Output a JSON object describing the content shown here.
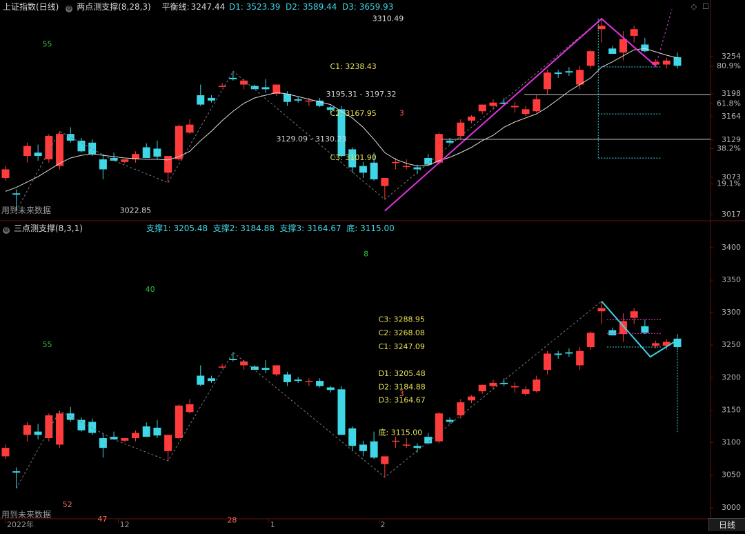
{
  "top": {
    "title": "上证指数(日线)",
    "indicator": "两点测支撑(8,28,3)",
    "balance_label": "平衡线:",
    "balance_value": "3247.44",
    "d_values": "D1: 3523.39  D2: 3589.44  D3: 3659.93",
    "future_label": "用到未来数据",
    "price_axis": [
      {
        "v": 3254,
        "t": "3254"
      },
      {
        "v": 3239.5,
        "t": "80.9%"
      },
      {
        "v": 3198,
        "t": "3198"
      },
      {
        "v": 3183,
        "t": "61.8%"
      },
      {
        "v": 3164,
        "t": "3164"
      },
      {
        "v": 3129,
        "t": "3129"
      },
      {
        "v": 3116,
        "t": "38.2%"
      },
      {
        "v": 3073,
        "t": "3073"
      },
      {
        "v": 3063,
        "t": "19.1%"
      },
      {
        "v": 3017,
        "t": "3017"
      }
    ],
    "annotations": [
      {
        "x": 17,
        "y": 3022.85,
        "t": "3022.85",
        "color": "#d8d8d8",
        "anchor": "start"
      },
      {
        "x": 54.6,
        "y": 3310.49,
        "t": "3310.49",
        "color": "#d8d8d8",
        "anchor": "start"
      },
      {
        "x": 48.3,
        "y": 3238.43,
        "t": "C1: 3238.43",
        "color": "#e8e05a",
        "anchor": "start"
      },
      {
        "x": 47.7,
        "y": 3197,
        "t": "3195.31 - 3197.32",
        "color": "#d8d8d8",
        "anchor": "start"
      },
      {
        "x": 48.3,
        "y": 3167.95,
        "t": "C2: 3167.95",
        "color": "#e8e05a",
        "anchor": "start"
      },
      {
        "x": 40.3,
        "y": 3130,
        "t": "3129.09 - 3130.23",
        "color": "#d8d8d8",
        "anchor": "start"
      },
      {
        "x": 48.3,
        "y": 3101.9,
        "t": "C3: 3101.90",
        "color": "#e8e05a",
        "anchor": "start"
      },
      {
        "x": 58.6,
        "y": 3168.5,
        "t": "3",
        "color": "#ff5a5a",
        "anchor": "start"
      },
      {
        "x": 5.5,
        "y": 3272,
        "t": "55",
        "color": "#30c040",
        "anchor": "start"
      }
    ]
  },
  "bottom": {
    "indicator": "三点测支撑(8,3,1)",
    "support_text": "支撑1: 3205.48  支撑2: 3184.88  支撑3: 3164.67  底: 3115.00",
    "future_label": "用到未来数据",
    "price_axis": [
      {
        "v": 3400,
        "t": "3400"
      },
      {
        "v": 3350,
        "t": "3350"
      },
      {
        "v": 3300,
        "t": "3300"
      },
      {
        "v": 3250,
        "t": "3250"
      },
      {
        "v": 3200,
        "t": "3200"
      },
      {
        "v": 3150,
        "t": "3150"
      },
      {
        "v": 3100,
        "t": "3100"
      },
      {
        "v": 3050,
        "t": "3050"
      },
      {
        "v": 3000,
        "t": "3000"
      }
    ],
    "annotations": [
      {
        "x": 55.5,
        "y": 3288.95,
        "t": "C3: 3288.95",
        "color": "#e8e05a",
        "anchor": "start"
      },
      {
        "x": 55.5,
        "y": 3268.08,
        "t": "C2: 3268.08",
        "color": "#e8e05a",
        "anchor": "start"
      },
      {
        "x": 55.5,
        "y": 3247.09,
        "t": "C1: 3247.09",
        "color": "#e8e05a",
        "anchor": "start"
      },
      {
        "x": 55.5,
        "y": 3205.48,
        "t": "D1: 3205.48",
        "color": "#e8e05a",
        "anchor": "start"
      },
      {
        "x": 55.5,
        "y": 3184.88,
        "t": "D2: 3184.88",
        "color": "#e8e05a",
        "anchor": "start"
      },
      {
        "x": 55.5,
        "y": 3164.67,
        "t": "D3: 3164.67",
        "color": "#e8e05a",
        "anchor": "start"
      },
      {
        "x": 55.5,
        "y": 3115.0,
        "t": "底: 3115.00",
        "color": "#e8e05a",
        "anchor": "start"
      },
      {
        "x": 5.5,
        "y": 3250,
        "t": "55",
        "color": "#30c040",
        "anchor": "start"
      },
      {
        "x": 20.8,
        "y": 3335,
        "t": "40",
        "color": "#30c040",
        "anchor": "start"
      },
      {
        "x": 53.3,
        "y": 3390,
        "t": "8",
        "color": "#30c040",
        "anchor": "start"
      },
      {
        "x": 8.5,
        "y": 3004,
        "t": "52",
        "color": "#ff6a5a",
        "anchor": "start"
      },
      {
        "x": 13.7,
        "y": 2982,
        "t": "47",
        "color": "#ff6a5a",
        "anchor": "start"
      },
      {
        "x": 33.0,
        "y": 2980,
        "t": "28",
        "color": "#ff6a5a",
        "anchor": "start"
      },
      {
        "x": 58.6,
        "y": 3175,
        "t": "3",
        "color": "#ff6a5a",
        "anchor": "start"
      }
    ]
  },
  "time_axis": [
    {
      "x": 0,
      "t": "2022年"
    },
    {
      "x": 16.8,
      "t": "12"
    },
    {
      "x": 39.2,
      "t": "1"
    },
    {
      "x": 55.6,
      "t": "2"
    }
  ],
  "tab_label": "日线",
  "chart_data": {
    "type": "candlestick",
    "x_unit": "trading day index",
    "ohlc": [
      [
        3072,
        3090,
        3068,
        3085
      ],
      [
        3049,
        3055,
        3022.85,
        3047
      ],
      [
        3105,
        3125,
        3095,
        3120
      ],
      [
        3110,
        3122,
        3098,
        3105
      ],
      [
        3100,
        3138,
        3095,
        3135
      ],
      [
        3090,
        3142,
        3085,
        3138
      ],
      [
        3138,
        3148,
        3125,
        3128
      ],
      [
        3128,
        3132,
        3110,
        3112
      ],
      [
        3125,
        3130,
        3105,
        3108
      ],
      [
        3100,
        3108,
        3070,
        3085
      ],
      [
        3102,
        3110,
        3098,
        3098
      ],
      [
        3096,
        3100,
        3094,
        3100
      ],
      [
        3100,
        3112,
        3095,
        3108
      ],
      [
        3118,
        3124,
        3102,
        3102
      ],
      [
        3116,
        3128,
        3100,
        3104
      ],
      [
        3080,
        3105,
        3065,
        3105
      ],
      [
        3100,
        3152,
        3098,
        3150
      ],
      [
        3140,
        3160,
        3138,
        3152
      ],
      [
        3196,
        3212,
        3180,
        3182
      ],
      [
        3192,
        3196,
        3185,
        3188
      ],
      [
        3210,
        3214,
        3208,
        3210
      ],
      [
        3222,
        3232,
        3218,
        3220
      ],
      [
        3212,
        3220,
        3205,
        3218
      ],
      [
        3210,
        3212,
        3205,
        3205
      ],
      [
        3208,
        3220,
        3200,
        3205
      ],
      [
        3198,
        3210,
        3195,
        3212
      ],
      [
        3198,
        3202,
        3180,
        3186
      ],
      [
        3190,
        3194,
        3185,
        3188
      ],
      [
        3187,
        3192,
        3180,
        3188
      ],
      [
        3188,
        3192,
        3178,
        3180
      ],
      [
        3178,
        3180,
        3170,
        3174
      ],
      [
        3175,
        3180,
        3105,
        3105
      ],
      [
        3115,
        3118,
        3080,
        3088
      ],
      [
        3090,
        3096,
        3072,
        3080
      ],
      [
        3095,
        3110,
        3068,
        3070
      ],
      [
        3060,
        3072,
        3040,
        3072
      ],
      [
        3096,
        3102,
        3085,
        3096
      ],
      [
        3090,
        3100,
        3085,
        3090
      ],
      [
        3088,
        3092,
        3078,
        3085
      ],
      [
        3102,
        3108,
        3090,
        3092
      ],
      [
        3095,
        3140,
        3092,
        3138
      ],
      [
        3128,
        3132,
        3122,
        3125
      ],
      [
        3135,
        3160,
        3130,
        3155
      ],
      [
        3158,
        3166,
        3154,
        3164
      ],
      [
        3172,
        3182,
        3168,
        3182
      ],
      [
        3180,
        3190,
        3176,
        3185
      ],
      [
        3185,
        3192,
        3180,
        3183
      ],
      [
        3178,
        3186,
        3170,
        3180
      ],
      [
        3168,
        3180,
        3165,
        3175
      ],
      [
        3172,
        3196,
        3170,
        3190
      ],
      [
        3205,
        3234,
        3198,
        3230
      ],
      [
        3230,
        3234,
        3222,
        3228
      ],
      [
        3232,
        3238,
        3225,
        3230
      ],
      [
        3212,
        3240,
        3205,
        3234
      ],
      [
        3240,
        3264,
        3236,
        3262
      ],
      [
        3295,
        3310.49,
        3275,
        3300
      ],
      [
        3266,
        3270,
        3258,
        3258
      ],
      [
        3260,
        3292,
        3248,
        3280
      ],
      [
        3285,
        3300,
        3275,
        3295
      ],
      [
        3272,
        3282,
        3260,
        3262
      ],
      [
        3242,
        3250,
        3238,
        3246
      ],
      [
        3242,
        3252,
        3236,
        3248
      ],
      [
        3253,
        3260,
        3236,
        3240
      ]
    ],
    "ma": [
      3052,
      3058,
      3066,
      3074,
      3084,
      3094,
      3102,
      3106,
      3108,
      3106,
      3104,
      3102,
      3101,
      3100,
      3100,
      3099,
      3104,
      3112,
      3128,
      3142,
      3158,
      3172,
      3184,
      3192,
      3196,
      3200,
      3198,
      3194,
      3190,
      3186,
      3182,
      3172,
      3162,
      3148,
      3130,
      3110,
      3100,
      3094,
      3090,
      3091,
      3098,
      3103,
      3110,
      3118,
      3128,
      3136,
      3148,
      3156,
      3162,
      3168,
      3178,
      3190,
      3202,
      3212,
      3222,
      3238,
      3246,
      3255,
      3264,
      3266,
      3261,
      3256,
      3252
    ]
  }
}
